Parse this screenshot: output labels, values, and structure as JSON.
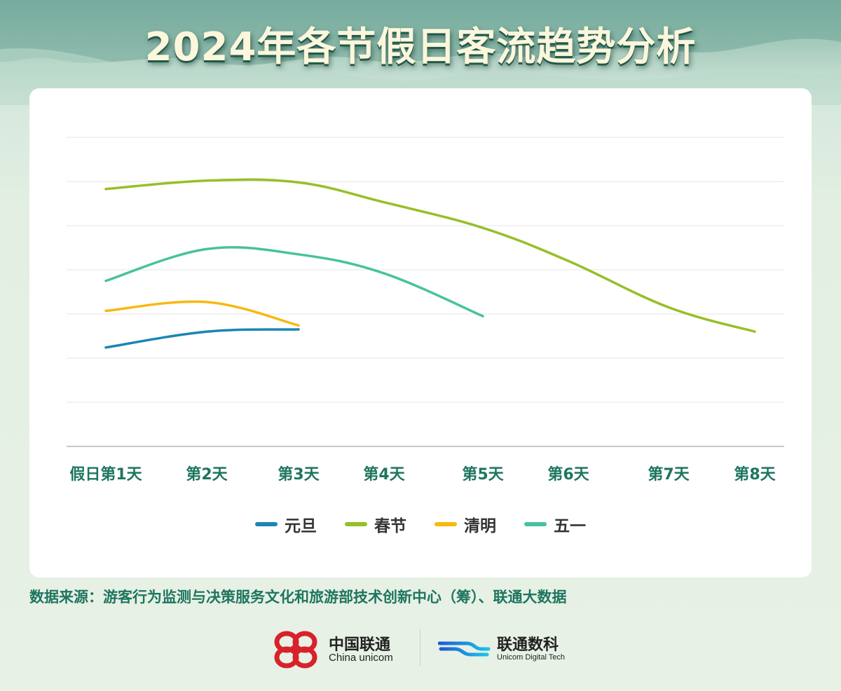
{
  "header": {
    "title": "2024年各节假日客流趋势分析"
  },
  "chart_data": {
    "type": "line",
    "title": "2024年各节假日客流趋势分析",
    "xlabel": "",
    "ylabel": "",
    "y_axis_labels_shown": false,
    "grid": true,
    "legend_position": "bottom",
    "categories": [
      "假日第1天",
      "第2天",
      "第3天",
      "第4天",
      "第5天",
      "第6天",
      "第7天",
      "第8天"
    ],
    "ylim": [
      0,
      7
    ],
    "series": [
      {
        "name": "元旦",
        "color": "#1a86b5",
        "values": [
          2.24,
          2.6,
          2.65,
          null,
          null,
          null,
          null,
          null
        ]
      },
      {
        "name": "春节",
        "color": "#97bf28",
        "values": [
          5.83,
          6.02,
          5.98,
          5.53,
          4.95,
          4.2,
          3.15,
          2.6
        ]
      },
      {
        "name": "清明",
        "color": "#f7b90f",
        "values": [
          3.07,
          3.27,
          2.74,
          null,
          null,
          null,
          null,
          null
        ]
      },
      {
        "name": "五一",
        "color": "#47c29d",
        "values": [
          3.75,
          4.47,
          4.35,
          3.92,
          2.95,
          null,
          null,
          null
        ]
      }
    ]
  },
  "footer": {
    "source": "数据来源：游客行为监测与决策服务文化和旅游部技术创新中心（筹）、联通大数据",
    "logo_china_unicom_cn": "中国联通",
    "logo_china_unicom_en": "China unicom",
    "logo_digital_cn": "联通数科",
    "logo_digital_en": "Unicom Digital Tech"
  }
}
